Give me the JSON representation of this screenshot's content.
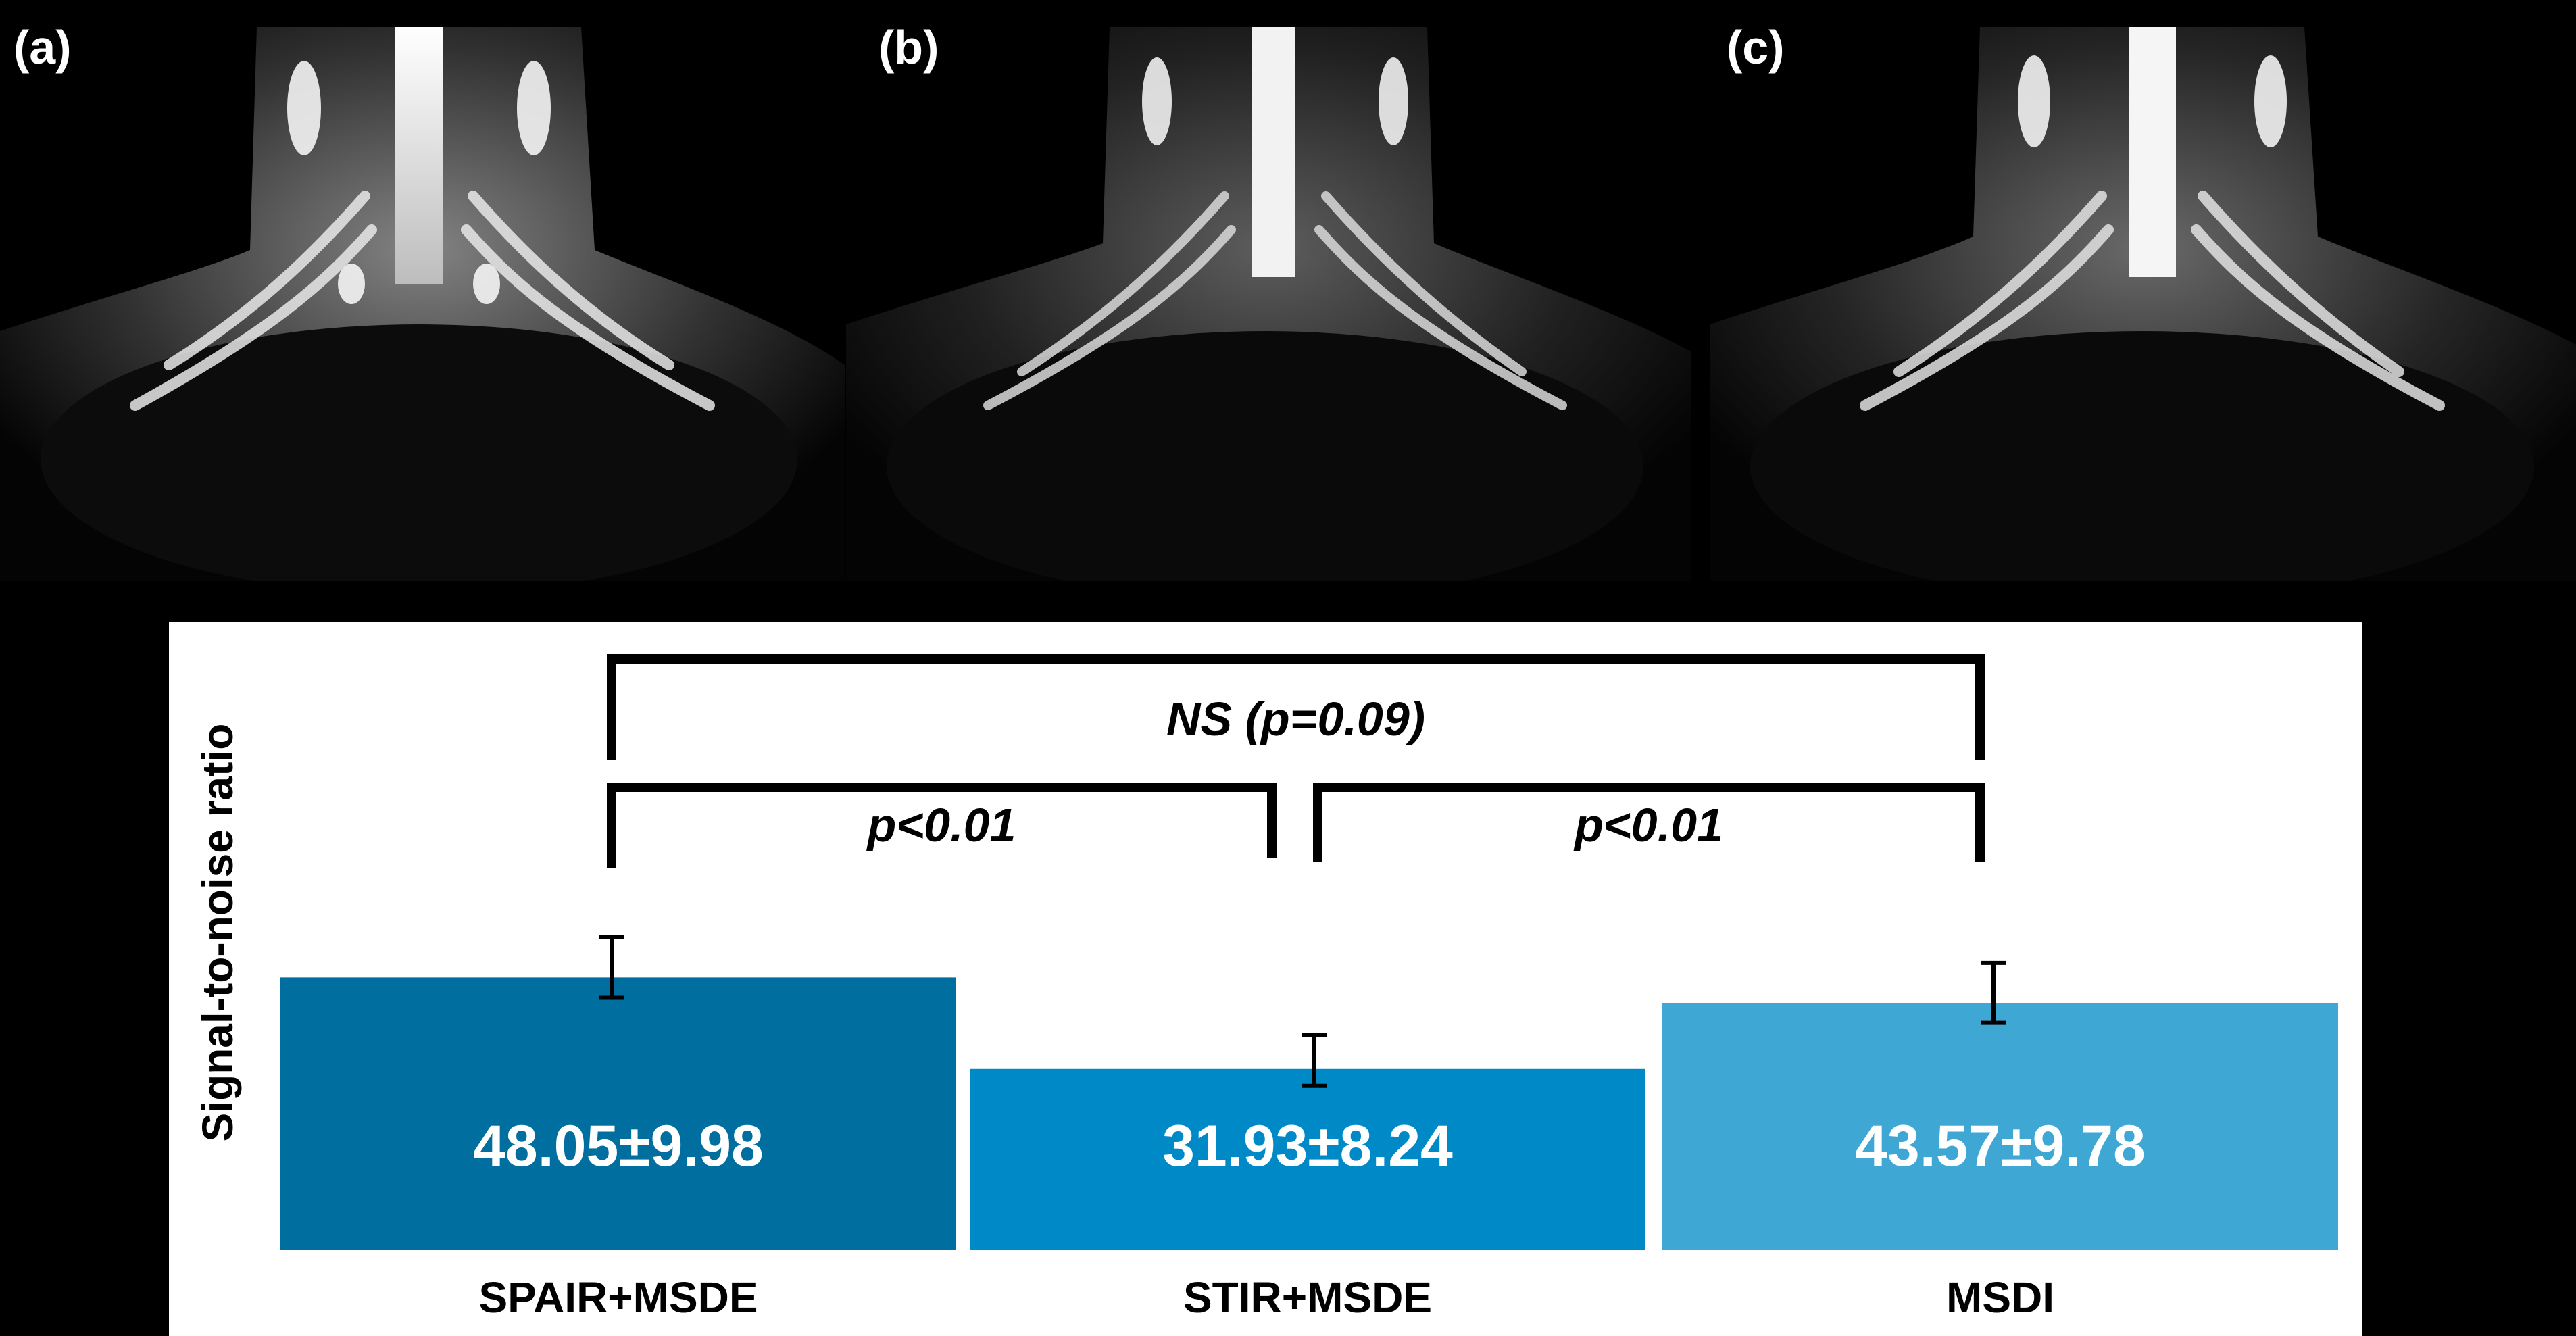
{
  "panels": [
    {
      "label": "(a)"
    },
    {
      "label": "(b)"
    },
    {
      "label": "(c)"
    }
  ],
  "chart_data": {
    "type": "bar",
    "categories": [
      "SPAIR+MSDE",
      "STIR+MSDE",
      "MSDI"
    ],
    "values": [
      48.05,
      31.93,
      43.57
    ],
    "errors": [
      9.98,
      8.24,
      9.78
    ],
    "value_labels": [
      "48.05±9.98",
      "31.93±8.24",
      "43.57±9.78"
    ],
    "colors": [
      "#006E9E",
      "#0089C7",
      "#3FA7D4"
    ],
    "title": "",
    "xlabel": "",
    "ylabel": "Signal-to-noise ratio",
    "ylim": [
      0,
      100
    ],
    "grid": false,
    "significance": [
      {
        "from": 0,
        "to": 1,
        "label": "p<0.01"
      },
      {
        "from": 1,
        "to": 2,
        "label": "p<0.01"
      },
      {
        "from": 0,
        "to": 2,
        "label": "NS (p=0.09)"
      }
    ]
  }
}
